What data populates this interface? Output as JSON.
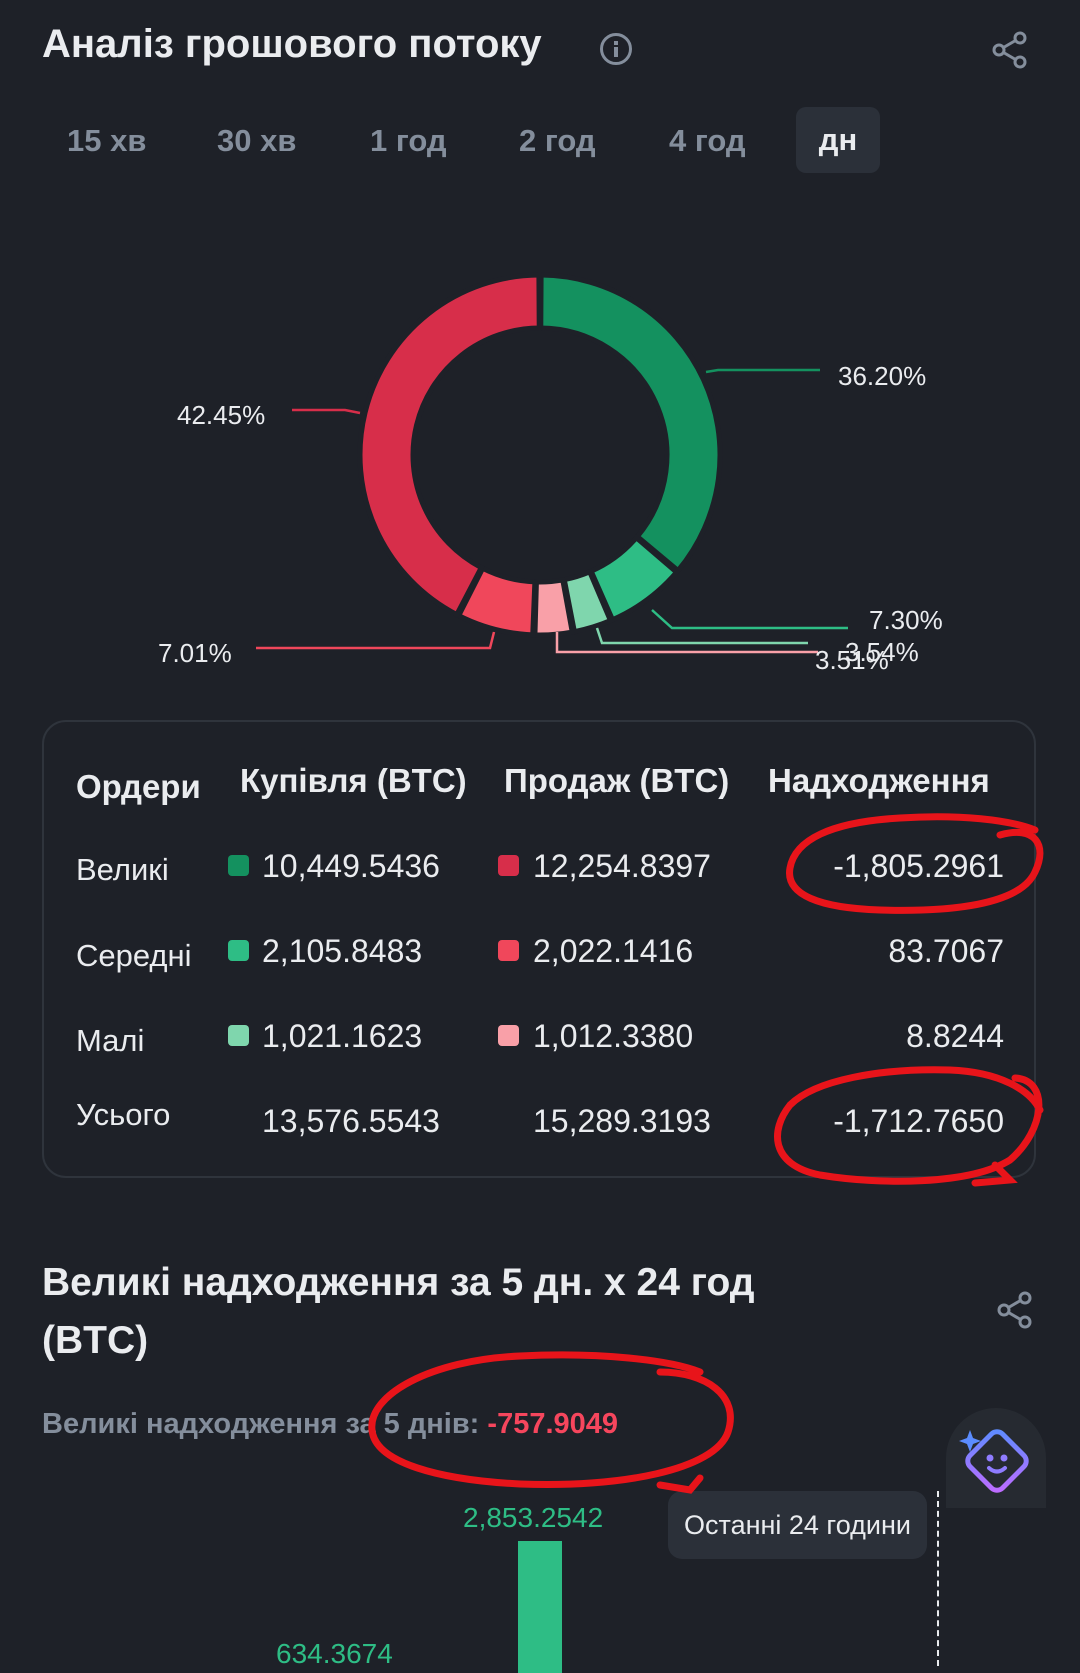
{
  "header": {
    "title": "Аналіз грошового потоку",
    "share_icon": "share-icon",
    "info_icon": "info-icon"
  },
  "tabs": [
    {
      "label": "15 хв",
      "active": false
    },
    {
      "label": "30 хв",
      "active": false
    },
    {
      "label": "1 год",
      "active": false
    },
    {
      "label": "2 год",
      "active": false
    },
    {
      "label": "4 год",
      "active": false
    },
    {
      "label": "дн",
      "active": true
    }
  ],
  "donut": {
    "segments": [
      {
        "label": "36.20%",
        "value": 36.2,
        "color": "#14915f"
      },
      {
        "label": "7.30%",
        "value": 7.3,
        "color": "#2ebd85"
      },
      {
        "label": "3.54%",
        "value": 3.54,
        "color": "#7fd6ad"
      },
      {
        "label": "3.51%",
        "value": 3.51,
        "color": "#f9a0a8"
      },
      {
        "label": "7.01%",
        "value": 7.01,
        "color": "#f0475b"
      },
      {
        "label": "42.45%",
        "value": 42.45,
        "color": "#d72e4a"
      }
    ]
  },
  "table": {
    "headers": [
      "Ордери",
      "Купівля (BTC)",
      "Продаж (BTC)",
      "Надходження"
    ],
    "rows": [
      {
        "label": "Великі",
        "buy": "10,449.5436",
        "sell": "12,254.8397",
        "net": "-1,805.2961",
        "buy_color": "#14915f",
        "sell_color": "#d72e4a"
      },
      {
        "label": "Середні",
        "buy": "2,105.8483",
        "sell": "2,022.1416",
        "net": "83.7067",
        "buy_color": "#2ebd85",
        "sell_color": "#f0475b"
      },
      {
        "label": "Малі",
        "buy": "1,021.1623",
        "sell": "1,012.3380",
        "net": "8.8244",
        "buy_color": "#7fd6ad",
        "sell_color": "#f9a0a8"
      }
    ],
    "total": {
      "label": "Усього",
      "buy": "13,576.5543",
      "sell": "15,289.3193",
      "net": "-1,712.7650"
    }
  },
  "section2": {
    "title": "Великі надходження за 5 дн. x 24 год (BTC)",
    "subtitle_label": "Великі надходження за 5 днів:",
    "subtitle_value": "-757.9049",
    "tooltip": "Останні 24 години",
    "bar_label_1": "2,853.2542",
    "bar_label_2": "634.3674",
    "assistant_icon": "ai-assistant-icon"
  },
  "colors": {
    "background": "#1e2128",
    "positive": "#2ebd85",
    "negative": "#f6465d",
    "annotation": "#e8141a"
  }
}
